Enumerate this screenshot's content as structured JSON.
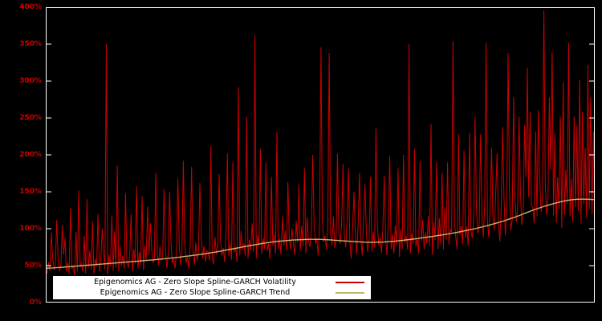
{
  "colors": {
    "background": "#000000",
    "frame": "#ffffff",
    "tick_label": "#cc0000",
    "volatility_line": "#cc0000",
    "trend_line": "#bdb76b",
    "legend_background": "#ffffff",
    "legend_text": "#000000"
  },
  "chart_data": {
    "type": "line",
    "title": "",
    "xlabel": "",
    "ylabel": "",
    "ylim": [
      0,
      400
    ],
    "grid": false,
    "legend_position": "bottom-center-inside",
    "x_axis_labels_visible": false,
    "yticks": [
      {
        "value": 0,
        "label": "0%"
      },
      {
        "value": 50,
        "label": "50%"
      },
      {
        "value": 100,
        "label": "100%"
      },
      {
        "value": 150,
        "label": "150%"
      },
      {
        "value": 200,
        "label": "200%"
      },
      {
        "value": 250,
        "label": "250%"
      },
      {
        "value": 300,
        "label": "300%"
      },
      {
        "value": 350,
        "label": "350%"
      },
      {
        "value": 400,
        "label": "400%"
      }
    ],
    "series": [
      {
        "name": "Epigenomics AG - Zero Slope Spline-GARCH Volatility",
        "color": "#cc0000",
        "style": "noisy-spiky"
      },
      {
        "name": "Epigenomics AG - Zero Slope Spline-GARCH Trend",
        "color": "#bdb76b",
        "style": "smooth"
      }
    ],
    "trend_points": [
      [
        0,
        46
      ],
      [
        0.05,
        49
      ],
      [
        0.1,
        52
      ],
      [
        0.15,
        55
      ],
      [
        0.2,
        58
      ],
      [
        0.25,
        62
      ],
      [
        0.3,
        67
      ],
      [
        0.35,
        74
      ],
      [
        0.4,
        81
      ],
      [
        0.45,
        85
      ],
      [
        0.5,
        86
      ],
      [
        0.55,
        83
      ],
      [
        0.6,
        81
      ],
      [
        0.65,
        84
      ],
      [
        0.7,
        89
      ],
      [
        0.75,
        95
      ],
      [
        0.8,
        103
      ],
      [
        0.85,
        114
      ],
      [
        0.9,
        129
      ],
      [
        0.95,
        139
      ],
      [
        0.97,
        141
      ],
      [
        1,
        139
      ]
    ],
    "volatility": {
      "n_points": 400,
      "noise_pattern": [
        1.02,
        0.85,
        1.18,
        0.92,
        0.76,
        1.3,
        0.95,
        1.08,
        0.82,
        1.22,
        0.9,
        1.05,
        0.78,
        1.35,
        0.98,
        0.88,
        1.12,
        0.8,
        1.25,
        0.93,
        1.02,
        0.74,
        1.18,
        0.86,
        1.3,
        0.96,
        1.06,
        0.84,
        1.2,
        0.78,
        1.1,
        0.92,
        1.38,
        0.88,
        1.0,
        0.76,
        1.15,
        0.95,
        1.28,
        0.82,
        1.08,
        0.9,
        1.32,
        0.86,
        0.98,
        0.72,
        1.22,
        0.94,
        1.12,
        0.8,
        1.26,
        0.88,
        1.04,
        0.78,
        1.4,
        0.92,
        1.16,
        0.84,
        1.06
      ],
      "spikes": [
        [
          4,
          95
        ],
        [
          8,
          112
        ],
        [
          12,
          105
        ],
        [
          14,
          88
        ],
        [
          18,
          128
        ],
        [
          22,
          96
        ],
        [
          24,
          152
        ],
        [
          28,
          90
        ],
        [
          30,
          140
        ],
        [
          34,
          110
        ],
        [
          38,
          120
        ],
        [
          41,
          100
        ],
        [
          44,
          350
        ],
        [
          48,
          118
        ],
        [
          50,
          96
        ],
        [
          52,
          186
        ],
        [
          58,
          148
        ],
        [
          62,
          120
        ],
        [
          66,
          158
        ],
        [
          70,
          144
        ],
        [
          74,
          130
        ],
        [
          76,
          108
        ],
        [
          80,
          176
        ],
        [
          86,
          154
        ],
        [
          90,
          150
        ],
        [
          96,
          168
        ],
        [
          100,
          192
        ],
        [
          106,
          184
        ],
        [
          112,
          162
        ],
        [
          120,
          212
        ],
        [
          126,
          174
        ],
        [
          132,
          202
        ],
        [
          136,
          190
        ],
        [
          140,
          292
        ],
        [
          146,
          252
        ],
        [
          152,
          362
        ],
        [
          156,
          208
        ],
        [
          160,
          190
        ],
        [
          164,
          170
        ],
        [
          168,
          232
        ],
        [
          176,
          163
        ],
        [
          184,
          160
        ],
        [
          188,
          182
        ],
        [
          194,
          200
        ],
        [
          200,
          346
        ],
        [
          206,
          338
        ],
        [
          212,
          202
        ],
        [
          216,
          188
        ],
        [
          220,
          182
        ],
        [
          224,
          150
        ],
        [
          228,
          176
        ],
        [
          232,
          160
        ],
        [
          236,
          170
        ],
        [
          240,
          236
        ],
        [
          246,
          172
        ],
        [
          250,
          198
        ],
        [
          256,
          182
        ],
        [
          260,
          200
        ],
        [
          264,
          350
        ],
        [
          268,
          208
        ],
        [
          272,
          192
        ],
        [
          280,
          242
        ],
        [
          284,
          190
        ],
        [
          288,
          176
        ],
        [
          292,
          190
        ],
        [
          296,
          354
        ],
        [
          300,
          228
        ],
        [
          304,
          206
        ],
        [
          308,
          230
        ],
        [
          312,
          252
        ],
        [
          316,
          228
        ],
        [
          320,
          352
        ],
        [
          324,
          210
        ],
        [
          328,
          202
        ],
        [
          332,
          238
        ],
        [
          336,
          338
        ],
        [
          340,
          278
        ],
        [
          344,
          252
        ],
        [
          348,
          240
        ],
        [
          350,
          318
        ],
        [
          352,
          258
        ],
        [
          356,
          232
        ],
        [
          358,
          260
        ],
        [
          362,
          396
        ],
        [
          366,
          278
        ],
        [
          368,
          340
        ],
        [
          370,
          230
        ],
        [
          374,
          252
        ],
        [
          376,
          298
        ],
        [
          380,
          352
        ],
        [
          384,
          252
        ],
        [
          386,
          240
        ],
        [
          388,
          302
        ],
        [
          390,
          258
        ],
        [
          392,
          210
        ],
        [
          394,
          322
        ],
        [
          396,
          278
        ],
        [
          398,
          232
        ]
      ]
    }
  }
}
